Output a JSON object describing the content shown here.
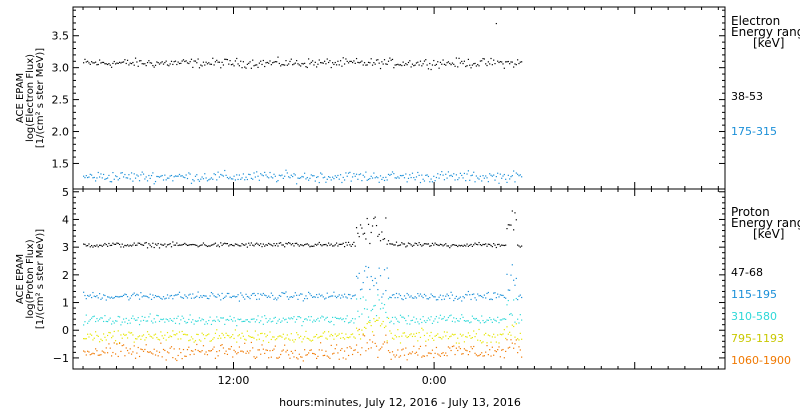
{
  "chart_data": [
    {
      "type": "scatter",
      "ylabel": [
        "ACE EPAM",
        "log(Electron Flux)",
        "[1/(cm² s ster MeV)]"
      ],
      "ylim": [
        1.1,
        3.95
      ],
      "y_ticks": [
        "1.5",
        "2.0",
        "2.5",
        "3.0",
        "3.5"
      ],
      "legend_title": [
        "Electron",
        "Energy range",
        "[keV]"
      ],
      "series": [
        {
          "name": "38-53",
          "color": "#000000",
          "baseline": 3.08,
          "noise": 0.05
        },
        {
          "name": "175-315",
          "color": "#1a8fd8",
          "baseline": 1.3,
          "noise": 0.06
        }
      ]
    },
    {
      "type": "scatter",
      "ylabel": [
        "ACE EPAM",
        "log(Proton Flux)",
        "[1/(cm² s ster MeV)]"
      ],
      "ylim": [
        -1.4,
        5.1
      ],
      "y_ticks": [
        "−1",
        "0",
        "1",
        "2",
        "3",
        "4",
        "5"
      ],
      "legend_title": [
        "Proton",
        "Energy range",
        "[keV]"
      ],
      "series": [
        {
          "name": "47-68",
          "color": "#000000",
          "baseline": 3.1,
          "noise": 0.06
        },
        {
          "name": "115-195",
          "color": "#1a8fd8",
          "baseline": 1.25,
          "noise": 0.1
        },
        {
          "name": "310-580",
          "color": "#2ed8d8",
          "baseline": 0.4,
          "noise": 0.12
        },
        {
          "name": "795-1193",
          "color": "#e6e600",
          "baseline": -0.2,
          "noise": 0.15
        },
        {
          "name": "1060-1900",
          "color": "#f07800",
          "baseline": -0.75,
          "noise": 0.2
        }
      ]
    }
  ],
  "x_axis": {
    "tick_labels": [
      "12:00",
      "0:00"
    ],
    "label": "hours:minutes, July 12, 2016 - July 13, 2016"
  }
}
